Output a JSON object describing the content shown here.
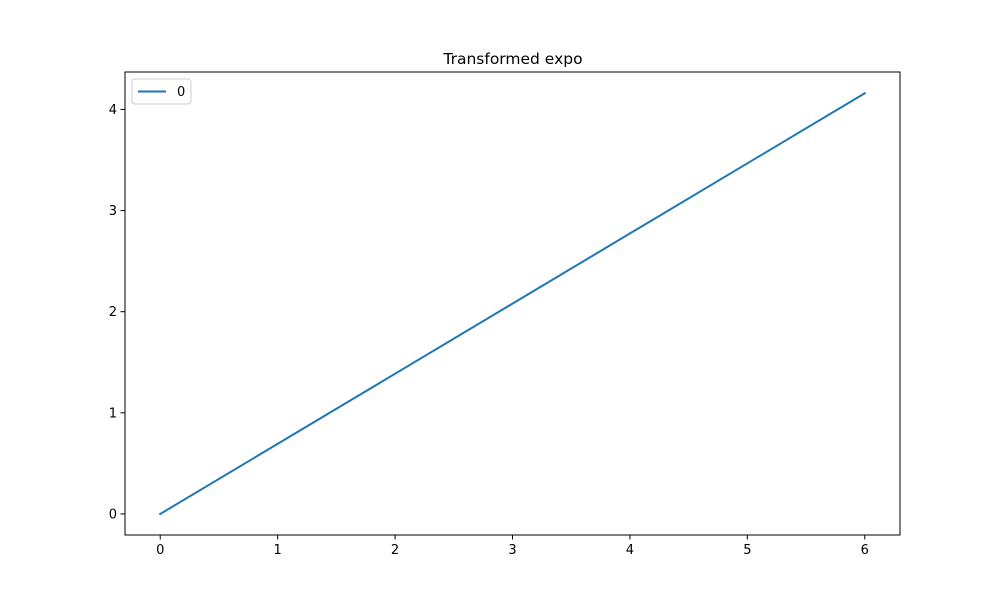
{
  "chart_data": {
    "type": "line",
    "title": "Transformed expo",
    "xlabel": "",
    "ylabel": "",
    "xlim": [
      -0.3,
      6.3
    ],
    "ylim": [
      -0.208,
      4.37
    ],
    "xticks": [
      0,
      1,
      2,
      3,
      4,
      5,
      6
    ],
    "xtick_labels": [
      "0",
      "1",
      "2",
      "3",
      "4",
      "5",
      "6"
    ],
    "yticks": [
      0,
      1,
      2,
      3,
      4
    ],
    "ytick_labels": [
      "0",
      "1",
      "2",
      "3",
      "4"
    ],
    "grid": false,
    "legend": {
      "position": "top-left",
      "entries": [
        "0"
      ]
    },
    "series": [
      {
        "name": "0",
        "color": "#1f77b4",
        "x": [
          0,
          6
        ],
        "y": [
          0,
          4.16
        ]
      }
    ]
  }
}
